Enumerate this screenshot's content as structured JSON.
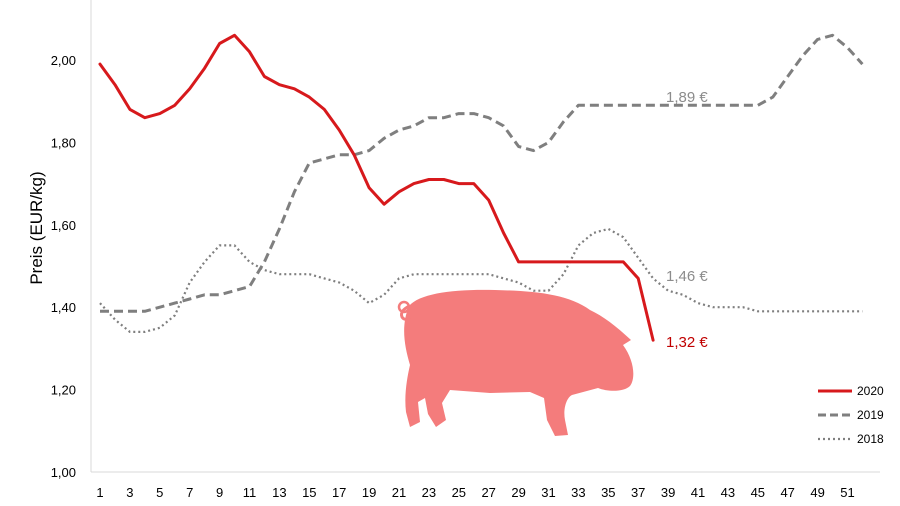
{
  "chart_data": {
    "type": "line",
    "ylabel": "Preis (EUR/kg)",
    "ylim": [
      1.0,
      2.15
    ],
    "yticks": [
      "1,00",
      "1,20",
      "1,40",
      "1,60",
      "1,80",
      "2,00"
    ],
    "xticks": [
      "1",
      "3",
      "5",
      "7",
      "9",
      "11",
      "13",
      "15",
      "17",
      "19",
      "21",
      "23",
      "25",
      "27",
      "29",
      "31",
      "33",
      "35",
      "37",
      "39",
      "41",
      "43",
      "45",
      "47",
      "49",
      "51"
    ],
    "xlim": [
      1,
      52
    ],
    "grid": false,
    "legend_position": "bottom-right",
    "series": [
      {
        "name": "2020",
        "color": "#d7191c",
        "style": "solid",
        "end_label": "1,32 €",
        "points": [
          [
            1,
            1.99
          ],
          [
            2,
            1.94
          ],
          [
            3,
            1.88
          ],
          [
            4,
            1.86
          ],
          [
            5,
            1.87
          ],
          [
            6,
            1.89
          ],
          [
            7,
            1.93
          ],
          [
            8,
            1.98
          ],
          [
            9,
            2.04
          ],
          [
            10,
            2.06
          ],
          [
            11,
            2.02
          ],
          [
            12,
            1.96
          ],
          [
            13,
            1.94
          ],
          [
            14,
            1.93
          ],
          [
            15,
            1.91
          ],
          [
            16,
            1.88
          ],
          [
            17,
            1.83
          ],
          [
            18,
            1.77
          ],
          [
            19,
            1.69
          ],
          [
            20,
            1.65
          ],
          [
            21,
            1.68
          ],
          [
            22,
            1.7
          ],
          [
            23,
            1.71
          ],
          [
            24,
            1.71
          ],
          [
            25,
            1.7
          ],
          [
            26,
            1.7
          ],
          [
            27,
            1.66
          ],
          [
            28,
            1.58
          ],
          [
            29,
            1.51
          ],
          [
            30,
            1.51
          ],
          [
            31,
            1.51
          ],
          [
            32,
            1.51
          ],
          [
            33,
            1.51
          ],
          [
            34,
            1.51
          ],
          [
            35,
            1.51
          ],
          [
            36,
            1.51
          ],
          [
            37,
            1.47
          ],
          [
            38,
            1.32
          ]
        ]
      },
      {
        "name": "2019",
        "color": "#7f7f7f",
        "style": "dashed",
        "end_label": "1,89 €",
        "points": [
          [
            1,
            1.39
          ],
          [
            2,
            1.39
          ],
          [
            3,
            1.39
          ],
          [
            4,
            1.39
          ],
          [
            5,
            1.4
          ],
          [
            6,
            1.41
          ],
          [
            7,
            1.42
          ],
          [
            8,
            1.43
          ],
          [
            9,
            1.43
          ],
          [
            10,
            1.44
          ],
          [
            11,
            1.45
          ],
          [
            12,
            1.51
          ],
          [
            13,
            1.59
          ],
          [
            14,
            1.68
          ],
          [
            15,
            1.75
          ],
          [
            16,
            1.76
          ],
          [
            17,
            1.77
          ],
          [
            18,
            1.77
          ],
          [
            19,
            1.78
          ],
          [
            20,
            1.81
          ],
          [
            21,
            1.83
          ],
          [
            22,
            1.84
          ],
          [
            23,
            1.86
          ],
          [
            24,
            1.86
          ],
          [
            25,
            1.87
          ],
          [
            26,
            1.87
          ],
          [
            27,
            1.86
          ],
          [
            28,
            1.84
          ],
          [
            29,
            1.79
          ],
          [
            30,
            1.78
          ],
          [
            31,
            1.8
          ],
          [
            32,
            1.85
          ],
          [
            33,
            1.89
          ],
          [
            34,
            1.89
          ],
          [
            35,
            1.89
          ],
          [
            36,
            1.89
          ],
          [
            37,
            1.89
          ],
          [
            38,
            1.89
          ],
          [
            39,
            1.89
          ],
          [
            40,
            1.89
          ],
          [
            41,
            1.89
          ],
          [
            42,
            1.89
          ],
          [
            43,
            1.89
          ],
          [
            44,
            1.89
          ],
          [
            45,
            1.89
          ],
          [
            46,
            1.91
          ],
          [
            47,
            1.96
          ],
          [
            48,
            2.01
          ],
          [
            49,
            2.05
          ],
          [
            50,
            2.06
          ],
          [
            51,
            2.03
          ],
          [
            52,
            1.99
          ]
        ]
      },
      {
        "name": "2018",
        "color": "#7f7f7f",
        "style": "dotted",
        "end_label": "1,46 €",
        "points": [
          [
            1,
            1.41
          ],
          [
            2,
            1.37
          ],
          [
            3,
            1.34
          ],
          [
            4,
            1.34
          ],
          [
            5,
            1.35
          ],
          [
            6,
            1.38
          ],
          [
            7,
            1.46
          ],
          [
            8,
            1.51
          ],
          [
            9,
            1.55
          ],
          [
            10,
            1.55
          ],
          [
            11,
            1.51
          ],
          [
            12,
            1.49
          ],
          [
            13,
            1.48
          ],
          [
            14,
            1.48
          ],
          [
            15,
            1.48
          ],
          [
            16,
            1.47
          ],
          [
            17,
            1.46
          ],
          [
            18,
            1.44
          ],
          [
            19,
            1.41
          ],
          [
            20,
            1.43
          ],
          [
            21,
            1.47
          ],
          [
            22,
            1.48
          ],
          [
            23,
            1.48
          ],
          [
            24,
            1.48
          ],
          [
            25,
            1.48
          ],
          [
            26,
            1.48
          ],
          [
            27,
            1.48
          ],
          [
            28,
            1.47
          ],
          [
            29,
            1.46
          ],
          [
            30,
            1.44
          ],
          [
            31,
            1.44
          ],
          [
            32,
            1.48
          ],
          [
            33,
            1.55
          ],
          [
            34,
            1.58
          ],
          [
            35,
            1.59
          ],
          [
            36,
            1.57
          ],
          [
            37,
            1.52
          ],
          [
            38,
            1.47
          ],
          [
            39,
            1.44
          ],
          [
            40,
            1.43
          ],
          [
            41,
            1.41
          ],
          [
            42,
            1.4
          ],
          [
            43,
            1.4
          ],
          [
            44,
            1.4
          ],
          [
            45,
            1.39
          ],
          [
            46,
            1.39
          ],
          [
            47,
            1.39
          ],
          [
            48,
            1.39
          ],
          [
            49,
            1.39
          ],
          [
            50,
            1.39
          ],
          [
            51,
            1.39
          ],
          [
            52,
            1.39
          ]
        ]
      }
    ],
    "decoration": "pig-silhouette",
    "decoration_color": "#f47c7c"
  }
}
